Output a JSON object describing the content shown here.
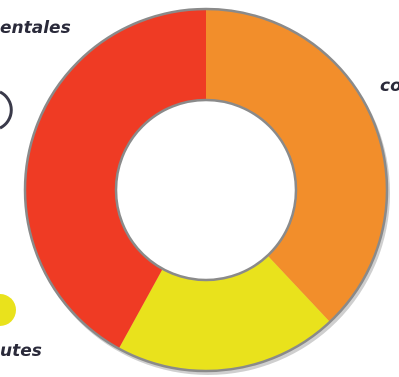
{
  "labels": {
    "top_left": "entales",
    "right": "co",
    "bottom_left": "utes"
  },
  "colors": {
    "orange": "#F28E2B",
    "yellow": "#E9E21C",
    "red": "#EF3B24",
    "ring_edge": "#8A8A8A"
  },
  "chart_data": {
    "type": "pie",
    "donut": true,
    "slices": [
      {
        "value": 38,
        "color": "#F28E2B"
      },
      {
        "value": 20,
        "color": "#E9E21C"
      },
      {
        "value": 42,
        "color": "#EF3B24"
      }
    ],
    "start_angle_deg": 0,
    "direction": "clockwise"
  }
}
